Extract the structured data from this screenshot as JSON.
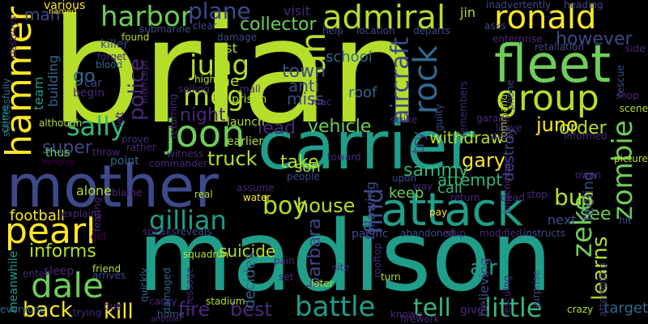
{
  "palette": {
    "background": "#000000",
    "lime": "#b5de2b",
    "yellow": "#fde725",
    "green": "#6ece58",
    "teal": "#1f9e89",
    "teal_light": "#35b779",
    "blue": "#31688e",
    "indigo": "#3e4989",
    "purple": "#482878",
    "dark_purple": "#440154"
  },
  "words": [
    {
      "text": "brian",
      "color": "#b5de2b"
    },
    {
      "text": "madison",
      "color": "#1f9e89"
    },
    {
      "text": "carrier",
      "color": "#1f9e89"
    },
    {
      "text": "mother",
      "color": "#3e4989"
    },
    {
      "text": "fleet",
      "color": "#6ece58"
    },
    {
      "text": "attack",
      "color": "#1f9e89"
    },
    {
      "text": "hammer",
      "color": "#fde725"
    },
    {
      "text": "ronald",
      "color": "#fde725"
    },
    {
      "text": "admiral",
      "color": "#b5de2b"
    },
    {
      "text": "harbor",
      "color": "#6ece58"
    },
    {
      "text": "dale",
      "color": "#6ece58"
    },
    {
      "text": "pearl",
      "color": "#fde725"
    },
    {
      "text": "joon",
      "color": "#6ece58"
    },
    {
      "text": "group",
      "color": "#b5de2b"
    },
    {
      "text": "rock",
      "color": "#31688e"
    },
    {
      "text": "ah",
      "color": "#b5de2b"
    },
    {
      "text": "jung",
      "color": "#b5de2b"
    },
    {
      "text": "meg",
      "color": "#b5de2b"
    },
    {
      "text": "sally",
      "color": "#35b779"
    },
    {
      "text": "boy",
      "color": "#b5de2b"
    },
    {
      "text": "zombie",
      "color": "#6ece58"
    },
    {
      "text": "zeke",
      "color": "#6ece58"
    },
    {
      "text": "find",
      "color": "#3e4989"
    },
    {
      "text": "aircraft",
      "color": "#3e4989"
    },
    {
      "text": "plane",
      "color": "#3e4989"
    },
    {
      "text": "gillian",
      "color": "#1f9e89"
    },
    {
      "text": "battle",
      "color": "#1f9e89"
    },
    {
      "text": "bus",
      "color": "#b5de2b"
    },
    {
      "text": "learns",
      "color": "#b5de2b"
    },
    {
      "text": "kill",
      "color": "#fde725"
    },
    {
      "text": "little",
      "color": "#35b779"
    },
    {
      "text": "tell",
      "color": "#35b779"
    },
    {
      "text": "fire",
      "color": "#482878"
    },
    {
      "text": "best",
      "color": "#482878"
    },
    {
      "text": "back",
      "color": "#fde725"
    },
    {
      "text": "police",
      "color": "#482878"
    },
    {
      "text": "truck",
      "color": "#b5de2b"
    },
    {
      "text": "house",
      "color": "#b5de2b"
    },
    {
      "text": "barbara",
      "color": "#3e4989"
    },
    {
      "text": "informs",
      "color": "#b5de2b"
    },
    {
      "text": "juno",
      "color": "#fde725"
    },
    {
      "text": "order",
      "color": "#b5de2b"
    },
    {
      "text": "vehicle",
      "color": "#6ece58"
    },
    {
      "text": "gary",
      "color": "#fde725"
    },
    {
      "text": "collector",
      "color": "#6ece58"
    },
    {
      "text": "however",
      "color": "#3e4989"
    },
    {
      "text": "super",
      "color": "#3e4989"
    },
    {
      "text": "night",
      "color": "#482878"
    },
    {
      "text": "town",
      "color": "#3e4989"
    },
    {
      "text": "lead",
      "color": "#482878"
    },
    {
      "text": "take",
      "color": "#b5de2b"
    },
    {
      "text": "anti",
      "color": "#3e4989"
    },
    {
      "text": "miss",
      "color": "#3e4989"
    },
    {
      "text": "tae",
      "color": "#b5de2b"
    },
    {
      "text": "go",
      "color": "#31688e"
    },
    {
      "text": "man",
      "color": "#3e4989"
    },
    {
      "text": "school",
      "color": "#31688e"
    },
    {
      "text": "suicide",
      "color": "#b5de2b"
    },
    {
      "text": "decides",
      "color": "#31688e"
    },
    {
      "text": "son",
      "color": "#b5de2b"
    },
    {
      "text": "sammy",
      "color": "#35b779"
    },
    {
      "text": "attempt",
      "color": "#35b779"
    },
    {
      "text": "call",
      "color": "#35b779"
    },
    {
      "text": "keep",
      "color": "#6ece58"
    },
    {
      "text": "see",
      "color": "#6ece58"
    },
    {
      "text": "air",
      "color": "#1f9e89"
    },
    {
      "text": "target",
      "color": "#31688e"
    },
    {
      "text": "withdraw",
      "color": "#b5de2b"
    },
    {
      "text": "roof",
      "color": "#31688e"
    },
    {
      "text": "destroy",
      "color": "#3e4989"
    },
    {
      "text": "next",
      "color": "#3e4989"
    },
    {
      "text": "feeling",
      "color": "#3e4989"
    },
    {
      "text": "football",
      "color": "#fde725"
    },
    {
      "text": "alone",
      "color": "#b5de2b"
    },
    {
      "text": "following",
      "color": "#3e4989"
    },
    {
      "text": "believing",
      "color": "#3e4989"
    },
    {
      "text": "try",
      "color": "#3e4989"
    },
    {
      "text": "last",
      "color": "#b5de2b"
    },
    {
      "text": "visit",
      "color": "#482878"
    },
    {
      "text": "jin",
      "color": "#b5de2b"
    },
    {
      "text": "various",
      "color": "#fde725"
    },
    {
      "text": "team",
      "color": "#1f9e89"
    },
    {
      "text": "building",
      "color": "#31688e"
    },
    {
      "text": "car",
      "color": "#3e4989"
    },
    {
      "text": "begin",
      "color": "#482878"
    },
    {
      "text": "prison",
      "color": "#b5de2b"
    },
    {
      "text": "launch",
      "color": "#b5de2b"
    },
    {
      "text": "earlier",
      "color": "#b5de2b"
    },
    {
      "text": "thus",
      "color": "#6ece58"
    },
    {
      "text": "throw",
      "color": "#482878"
    },
    {
      "text": "rather",
      "color": "#482878"
    },
    {
      "text": "witness",
      "color": "#482878"
    },
    {
      "text": "point",
      "color": "#31688e"
    },
    {
      "text": "commander",
      "color": "#482878"
    },
    {
      "text": "blame",
      "color": "#482878"
    },
    {
      "text": "real",
      "color": "#b5de2b"
    },
    {
      "text": "water",
      "color": "#fde725"
    },
    {
      "text": "assume",
      "color": "#482878"
    },
    {
      "text": "explains",
      "color": "#482878"
    },
    {
      "text": "speaks",
      "color": "#482878"
    },
    {
      "text": "reveals",
      "color": "#3e4989"
    },
    {
      "text": "squadron",
      "color": "#b5de2b"
    },
    {
      "text": "pacific",
      "color": "#3e4989"
    },
    {
      "text": "abandoned",
      "color": "#3e4989"
    },
    {
      "text": "modified",
      "color": "#482878"
    },
    {
      "text": "instructs",
      "color": "#3e4989"
    },
    {
      "text": "rescuing",
      "color": "#482878"
    },
    {
      "text": "surprise",
      "color": "#3e4989"
    },
    {
      "text": "attempting",
      "color": "#482878"
    },
    {
      "text": "crazy",
      "color": "#b5de2b"
    },
    {
      "text": "pain",
      "color": "#482878"
    },
    {
      "text": "set",
      "color": "#482878"
    },
    {
      "text": "site",
      "color": "#482878"
    },
    {
      "text": "later",
      "color": "#b5de2b"
    },
    {
      "text": "turn",
      "color": "#b5de2b"
    },
    {
      "text": "rooftop",
      "color": "#482878"
    },
    {
      "text": "casey",
      "color": "#482878"
    },
    {
      "text": "home",
      "color": "#3e4989"
    },
    {
      "text": "another",
      "color": "#482878"
    },
    {
      "text": "stadium",
      "color": "#b5de2b"
    },
    {
      "text": "sleep",
      "color": "#482878"
    },
    {
      "text": "friend",
      "color": "#b5de2b"
    },
    {
      "text": "arrives",
      "color": "#3e4989"
    },
    {
      "text": "quickly",
      "color": "#31688e"
    },
    {
      "text": "damaged",
      "color": "#31688e"
    },
    {
      "text": "message",
      "color": "#482878"
    },
    {
      "text": "trying",
      "color": "#482878"
    },
    {
      "text": "due",
      "color": "#482878"
    },
    {
      "text": "everyone",
      "color": "#31688e"
    },
    {
      "text": "meanwhile",
      "color": "#1f9e89"
    },
    {
      "text": "enter",
      "color": "#482878"
    },
    {
      "text": "girl",
      "color": "#440154"
    },
    {
      "text": "crime",
      "color": "#1f9e89"
    },
    {
      "text": "successfully",
      "color": "#31688e"
    },
    {
      "text": "destroys",
      "color": "#482878"
    },
    {
      "text": "killer",
      "color": "#3e4989"
    },
    {
      "text": "found",
      "color": "#b5de2b"
    },
    {
      "text": "submarine",
      "color": "#3e4989"
    },
    {
      "text": "clear",
      "color": "#3e4989"
    },
    {
      "text": "damage",
      "color": "#3e4989"
    },
    {
      "text": "help",
      "color": "#3e4989"
    },
    {
      "text": "location",
      "color": "#3e4989"
    },
    {
      "text": "departs",
      "color": "#3e4989"
    },
    {
      "text": "asks",
      "color": "#3e4989"
    },
    {
      "text": "inadvertently",
      "color": "#3e4989"
    },
    {
      "text": "heading",
      "color": "#3e4989"
    },
    {
      "text": "enterprise",
      "color": "#482878"
    },
    {
      "text": "retaliation",
      "color": "#3e4989"
    },
    {
      "text": "side",
      "color": "#482878"
    },
    {
      "text": "forget",
      "color": "#482878"
    },
    {
      "text": "blood",
      "color": "#31688e"
    },
    {
      "text": "intercept",
      "color": "#482878"
    },
    {
      "text": "high",
      "color": "#b5de2b"
    },
    {
      "text": "selling",
      "color": "#482878"
    },
    {
      "text": "returning",
      "color": "#482878"
    },
    {
      "text": "mall",
      "color": "#482878"
    },
    {
      "text": "mac",
      "color": "#482878"
    },
    {
      "text": "phone",
      "color": "#3e4989"
    },
    {
      "text": "rescue",
      "color": "#3e4989"
    },
    {
      "text": "shop",
      "color": "#482878"
    },
    {
      "text": "scene",
      "color": "#b5de2b"
    },
    {
      "text": "guilty",
      "color": "#3e4989"
    },
    {
      "text": "remembers",
      "color": "#482878"
    },
    {
      "text": "command",
      "color": "#b5de2b"
    },
    {
      "text": "garage",
      "color": "#482878"
    },
    {
      "text": "leave",
      "color": "#482878"
    },
    {
      "text": "state",
      "color": "#482878"
    },
    {
      "text": "informed",
      "color": "#482878"
    },
    {
      "text": "strike",
      "color": "#482878"
    },
    {
      "text": "although",
      "color": "#b5de2b"
    },
    {
      "text": "left",
      "color": "#482878"
    },
    {
      "text": "prove",
      "color": "#482878"
    },
    {
      "text": "hanging",
      "color": "#440154"
    },
    {
      "text": "toward",
      "color": "#482878"
    },
    {
      "text": "people",
      "color": "#3e4989"
    },
    {
      "text": "upon",
      "color": "#3e4989"
    },
    {
      "text": "way",
      "color": "#482878"
    },
    {
      "text": "impending",
      "color": "#482878"
    },
    {
      "text": "owen",
      "color": "#482878"
    },
    {
      "text": "picture",
      "color": "#b5de2b"
    },
    {
      "text": "return",
      "color": "#482878"
    },
    {
      "text": "dead",
      "color": "#482878"
    },
    {
      "text": "stop",
      "color": "#482878"
    },
    {
      "text": "hit",
      "color": "#3e4989"
    },
    {
      "text": "fearing",
      "color": "#482878"
    },
    {
      "text": "pay",
      "color": "#fde725"
    },
    {
      "text": "ship",
      "color": "#482878"
    },
    {
      "text": "give",
      "color": "#482878"
    },
    {
      "text": "known",
      "color": "#482878"
    },
    {
      "text": "firework",
      "color": "#482878"
    },
    {
      "text": "named",
      "color": "#fde725"
    }
  ]
}
